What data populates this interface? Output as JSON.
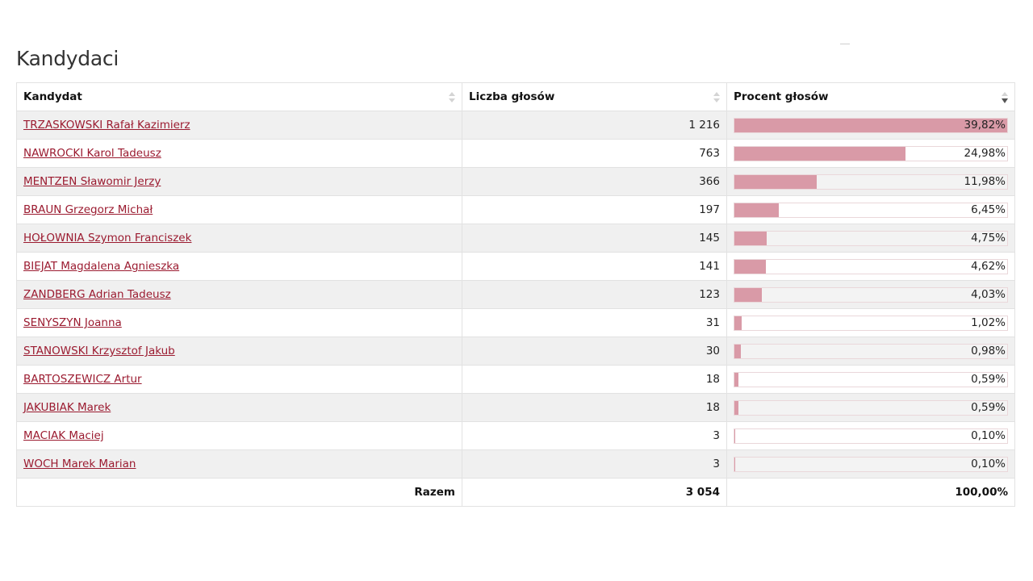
{
  "title": "Kandydaci",
  "table": {
    "headers": {
      "candidate": "Kandydat",
      "votes": "Liczba głosów",
      "percent": "Procent głosów"
    },
    "sort": {
      "column": "percent",
      "direction": "descending"
    },
    "rows": [
      {
        "name": "TRZASKOWSKI Rafał Kazimierz",
        "votes": "1 216",
        "percent": "39,82%",
        "share": 39.82
      },
      {
        "name": "NAWROCKI Karol Tadeusz",
        "votes": "763",
        "percent": "24,98%",
        "share": 24.98
      },
      {
        "name": "MENTZEN Sławomir Jerzy",
        "votes": "366",
        "percent": "11,98%",
        "share": 11.98
      },
      {
        "name": "BRAUN Grzegorz Michał",
        "votes": "197",
        "percent": "6,45%",
        "share": 6.45
      },
      {
        "name": "HOŁOWNIA Szymon Franciszek",
        "votes": "145",
        "percent": "4,75%",
        "share": 4.75
      },
      {
        "name": "BIEJAT Magdalena Agnieszka",
        "votes": "141",
        "percent": "4,62%",
        "share": 4.62
      },
      {
        "name": "ZANDBERG Adrian Tadeusz",
        "votes": "123",
        "percent": "4,03%",
        "share": 4.03
      },
      {
        "name": "SENYSZYN Joanna",
        "votes": "31",
        "percent": "1,02%",
        "share": 1.02
      },
      {
        "name": "STANOWSKI Krzysztof Jakub",
        "votes": "30",
        "percent": "0,98%",
        "share": 0.98
      },
      {
        "name": "BARTOSZEWICZ Artur",
        "votes": "18",
        "percent": "0,59%",
        "share": 0.59
      },
      {
        "name": "JAKUBIAK Marek",
        "votes": "18",
        "percent": "0,59%",
        "share": 0.59
      },
      {
        "name": "MACIAK Maciej",
        "votes": "3",
        "percent": "0,10%",
        "share": 0.1
      },
      {
        "name": "WOCH Marek Marian",
        "votes": "3",
        "percent": "0,10%",
        "share": 0.1
      }
    ],
    "total": {
      "label": "Razem",
      "votes": "3 054",
      "percent": "100,00%"
    }
  },
  "colors": {
    "link": "#9b1b30",
    "bar": "#d99aa7",
    "row_stripe": "#f0f0f0"
  }
}
